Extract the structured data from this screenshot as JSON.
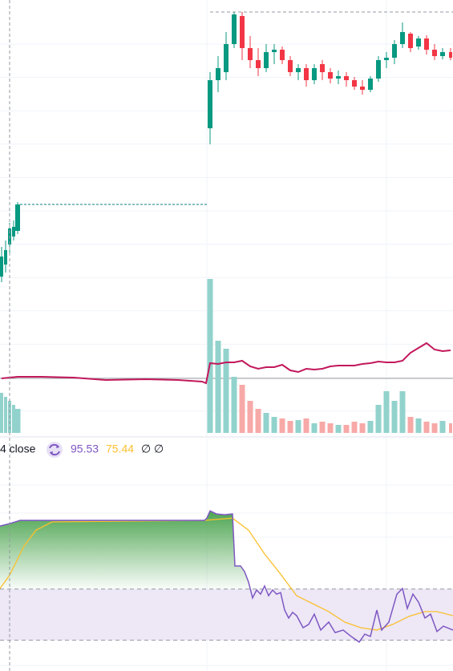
{
  "chart_data": [
    {
      "type": "candlestick",
      "x": [
        0,
        1,
        2,
        3,
        4,
        52,
        54,
        56,
        58,
        60,
        62,
        64,
        66,
        68,
        70,
        72,
        74,
        76,
        78,
        80,
        82,
        84,
        86,
        88,
        90,
        92,
        94,
        96,
        98,
        100,
        102,
        104,
        106,
        108,
        110,
        112
      ],
      "open": [
        195,
        210,
        235,
        245,
        252,
        380,
        440,
        450,
        485,
        520,
        480,
        465,
        455,
        475,
        478,
        465,
        450,
        455,
        440,
        460,
        450,
        442,
        445,
        440,
        432,
        428,
        442,
        465,
        468,
        485,
        498,
        482,
        492,
        478,
        470,
        475
      ],
      "high": [
        232,
        240,
        262,
        265,
        288,
        450,
        470,
        500,
        525,
        525,
        495,
        480,
        485,
        485,
        482,
        470,
        460,
        460,
        460,
        465,
        455,
        452,
        450,
        444,
        440,
        445,
        470,
        475,
        490,
        512,
        500,
        495,
        496,
        485,
        480,
        480
      ],
      "low": [
        188,
        200,
        225,
        240,
        248,
        360,
        425,
        440,
        480,
        465,
        455,
        445,
        450,
        460,
        460,
        445,
        440,
        432,
        435,
        440,
        436,
        435,
        432,
        428,
        422,
        425,
        438,
        455,
        460,
        480,
        475,
        478,
        472,
        465,
        466,
        465
      ],
      "close": [
        220,
        228,
        255,
        257,
        285,
        440,
        455,
        485,
        522,
        480,
        465,
        455,
        475,
        478,
        465,
        450,
        455,
        440,
        455,
        450,
        442,
        445,
        440,
        432,
        428,
        442,
        465,
        468,
        485,
        500,
        480,
        492,
        478,
        470,
        475,
        468
      ],
      "up_color": "#089981",
      "down_color": "#f23645",
      "xlim": [
        -0.4,
        112.6
      ],
      "ylim": [
        0,
        540
      ]
    },
    {
      "type": "bar",
      "x": [
        0,
        1,
        2,
        3,
        4,
        52,
        54,
        56,
        58,
        60,
        62,
        64,
        66,
        68,
        70,
        72,
        74,
        76,
        78,
        80,
        82,
        84,
        86,
        88,
        90,
        92,
        94,
        96,
        98,
        100,
        102,
        104,
        106,
        108,
        110,
        112
      ],
      "values": [
        50,
        45,
        40,
        35,
        30,
        192,
        115,
        105,
        70,
        60,
        40,
        30,
        25,
        20,
        18,
        15,
        16,
        18,
        12,
        14,
        12,
        10,
        10,
        14,
        12,
        15,
        35,
        52,
        40,
        52,
        20,
        18,
        14,
        12,
        15,
        12
      ],
      "up_color": "#92d2cc",
      "down_color": "#f7a9a7",
      "xlim": [
        -0.4,
        112.6
      ],
      "ylim": [
        0,
        200
      ]
    },
    {
      "type": "line",
      "x": [
        0,
        4,
        10,
        18,
        26,
        36,
        44,
        50,
        51,
        52,
        54,
        56,
        58,
        60,
        62,
        64,
        66,
        68,
        70,
        72,
        74,
        76,
        78,
        80,
        82,
        84,
        86,
        88,
        90,
        92,
        94,
        96,
        98,
        100,
        102,
        104,
        106,
        108,
        110,
        112
      ],
      "values": [
        68,
        70,
        70,
        69,
        66,
        67,
        66,
        64,
        62,
        87,
        86,
        88,
        88,
        90,
        83,
        80,
        82,
        82,
        85,
        78,
        76,
        80,
        79,
        80,
        83,
        84,
        84,
        84,
        86,
        87,
        89,
        88,
        88,
        90,
        100,
        106,
        112,
        104,
        102,
        103
      ],
      "color": "#c2185b",
      "xlim": [
        -0.4,
        112.6
      ],
      "ylim": [
        0,
        200
      ]
    },
    {
      "type": "rsi",
      "legend_label": "4 close",
      "legend_extra": [
        "∅",
        "∅"
      ],
      "series": [
        {
          "color": "#7e57c2",
          "x": [
            -0.4,
            2,
            4.6,
            50.6,
            51.2,
            52,
            53.6,
            55.6,
            57.6,
            58.2,
            59.6,
            60.6,
            61.6,
            62.6,
            63.6,
            64.6,
            65.6,
            66.6,
            67.6,
            68.6,
            69.6,
            70.6,
            71.6,
            72.6,
            73.6,
            75.2,
            76.6,
            78,
            79.6,
            81.6,
            83.2,
            85.2,
            87.2,
            89.2,
            90.6,
            92,
            93.6,
            94.8,
            96.6,
            98.6,
            100,
            101.2,
            102.6,
            104,
            105.6,
            107,
            108.6,
            110.2,
            112.6
          ],
          "values": [
            94.6,
            95.53,
            96.8,
            96.8,
            97.7,
            100.5,
            99.3,
            99,
            99.3,
            79,
            79,
            76.8,
            72.7,
            66.5,
            69.6,
            68,
            71.2,
            67.4,
            69.6,
            68,
            68.6,
            61.8,
            58.7,
            60.9,
            59.6,
            54.9,
            56.2,
            60.2,
            54,
            57.1,
            53,
            54,
            51.5,
            49.3,
            52.4,
            51.5,
            61.8,
            54,
            57.1,
            68,
            70.2,
            62.4,
            68,
            64.9,
            58.7,
            60.2,
            53.4,
            55.5,
            54
          ]
        },
        {
          "color": "#fbc02d",
          "x": [
            -0.4,
            2,
            5.6,
            8.6,
            12.6,
            50.6,
            57.6,
            61.6,
            65.6,
            69.6,
            73.6,
            77.6,
            81.6,
            85.6,
            89.6,
            93.6,
            97.6,
            101.6,
            105.6,
            108.6,
            112.6
          ],
          "values": [
            70.2,
            75.44,
            86.8,
            93,
            96.2,
            96.8,
            97.7,
            93,
            83.7,
            75.8,
            67.4,
            64.3,
            61.2,
            57.1,
            54.9,
            54,
            56.2,
            59.3,
            61.2,
            61.2,
            59.6
          ]
        }
      ],
      "bands": [
        70,
        50
      ],
      "band_color": "#ede7f6",
      "fill_color": "#43a047",
      "xlim": [
        -0.4,
        112.6
      ],
      "ylim": [
        38,
        120
      ]
    }
  ]
}
